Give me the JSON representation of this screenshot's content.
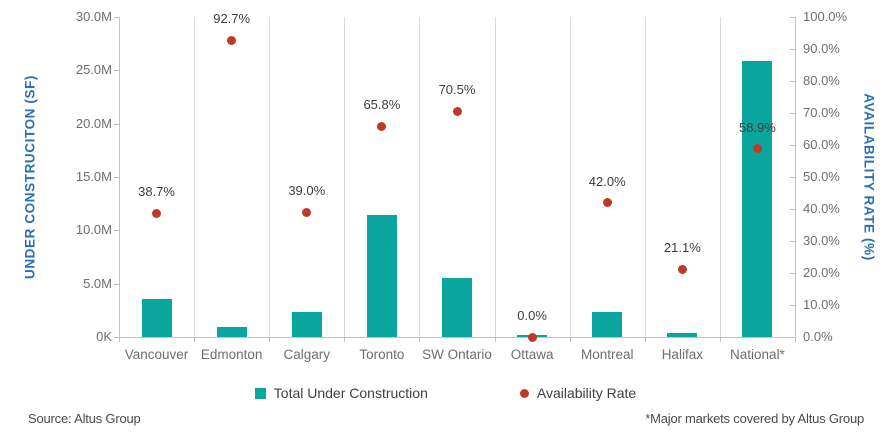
{
  "chart_data": {
    "type": "bar",
    "subtype": "combo-bar-scatter-dual-axis",
    "categories": [
      "Vancouver",
      "Edmonton",
      "Calgary",
      "Toronto",
      "SW Ontario",
      "Ottawa",
      "Montreal",
      "Halifax",
      "National*"
    ],
    "series": [
      {
        "name": "Total Under Construction",
        "type": "bar",
        "axis": "left",
        "unit": "million SF (estimated from bar heights)",
        "values": [
          3.6,
          0.9,
          2.3,
          11.4,
          5.5,
          0.2,
          2.3,
          0.4,
          25.9
        ]
      },
      {
        "name": "Availability Rate",
        "type": "scatter",
        "axis": "right",
        "unit": "%",
        "values": [
          38.7,
          92.7,
          39.0,
          65.8,
          70.5,
          0.0,
          42.0,
          21.1,
          58.9
        ],
        "point_labels": [
          "38.7%",
          "92.7%",
          "39.0%",
          "65.8%",
          "70.5%",
          "0.0%",
          "42.0%",
          "21.1%",
          "58.9%"
        ]
      }
    ],
    "left_axis": {
      "title": "UNDER CONSTRUCITON (SF)",
      "ticks": [
        "30.0M",
        "25.0M",
        "20.0M",
        "15.0M",
        "10.0M",
        "5.0M",
        "0K"
      ],
      "min": 0,
      "max_msf": 30
    },
    "right_axis": {
      "title": "AVAILABILITY RATE (%)",
      "ticks": [
        "100.0%",
        "90.0%",
        "80.0%",
        "70.0%",
        "60.0%",
        "50.0%",
        "40.0%",
        "30.0%",
        "20.0%",
        "10.0%",
        "0.0%"
      ],
      "min": 0,
      "max": 100
    },
    "grid": "vertical category separators only",
    "legend_position": "bottom"
  },
  "colors": {
    "bar": "#0AA69D",
    "dot": "#BF3A26",
    "axis_title": "#2B70B5",
    "tick_label": "#6E6E6E",
    "data_label": "#3D3D3D",
    "gridline": "#D9D9D9"
  },
  "legend": {
    "items": [
      {
        "label": "Total Under Construction",
        "marker": "square",
        "color": "#0AA69D"
      },
      {
        "label": "Availability Rate",
        "marker": "dot",
        "color": "#BF3A26"
      }
    ]
  },
  "footer": {
    "source": "Source: Altus Group",
    "note": "*Major markets covered by Altus Group"
  }
}
